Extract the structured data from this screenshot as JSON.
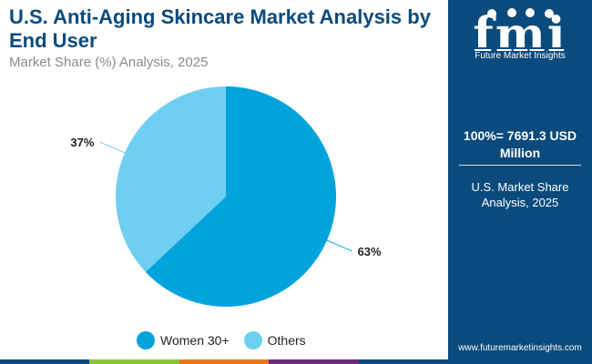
{
  "header": {
    "title": "U.S. Anti-Aging Skincare Market Analysis by End User",
    "subtitle": "Market Share (%) Analysis, 2025"
  },
  "side_panel": {
    "brand": "Future Market Insights",
    "logo_text": "fmi",
    "total": "100%= 7691.3 USD Million",
    "subtitle": "U.S. Market Share Analysis, 2025",
    "url": "www.futuremarketinsights.com"
  },
  "colors": {
    "women": "#00a3dc",
    "others": "#6ecff1",
    "title": "#0a4a7c",
    "panel": "#0a4a7c",
    "bar": [
      "#0a4a7c",
      "#8bc53f",
      "#e87722",
      "#6d2a7a",
      "#0a4a7c"
    ]
  },
  "chart_data": {
    "type": "pie",
    "categories": [
      "Women 30+",
      "Others"
    ],
    "values": [
      63,
      37
    ],
    "labels": [
      "63%",
      "37%"
    ],
    "legend_position": "bottom"
  }
}
